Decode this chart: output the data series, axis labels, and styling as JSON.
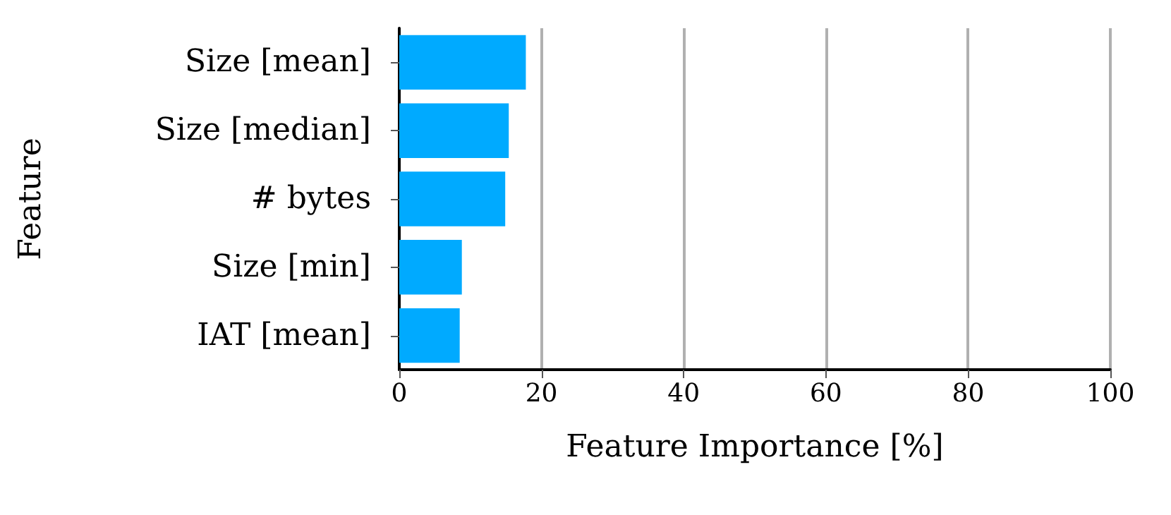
{
  "chart_data": {
    "type": "bar",
    "orientation": "horizontal",
    "categories": [
      "Size [mean]",
      "Size [median]",
      "# bytes",
      "Size [min]",
      "IAT [mean]"
    ],
    "values": [
      17.8,
      15.4,
      14.9,
      8.8,
      8.5
    ],
    "color": "#00aaff",
    "xlim": [
      0,
      100
    ],
    "xticks": [
      0,
      20,
      40,
      60,
      80,
      100
    ],
    "grid": "x",
    "xlabel": "Feature Importance [%]",
    "ylabel": "Feature"
  }
}
